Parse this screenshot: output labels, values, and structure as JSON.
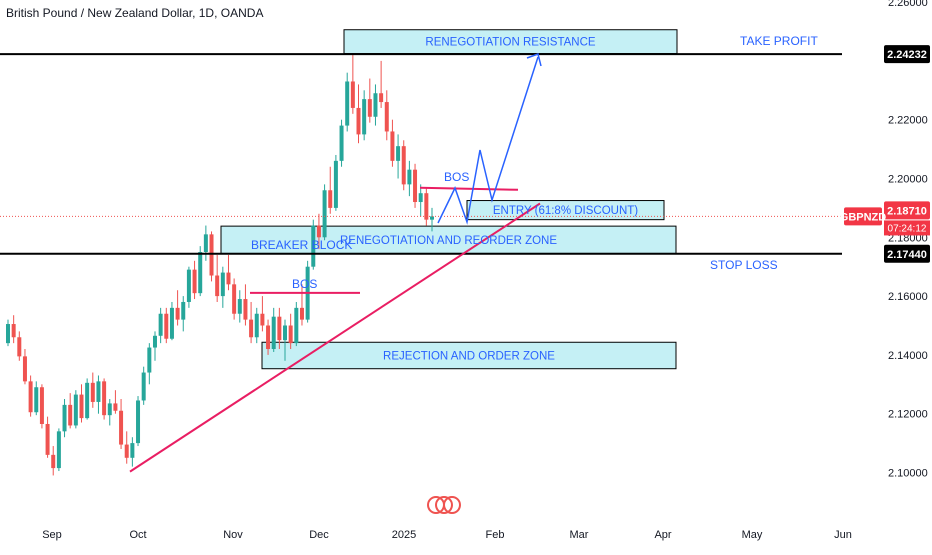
{
  "header": {
    "symbol_title": "British Pound / New Zealand Dollar, 1D, OANDA"
  },
  "chart_data": {
    "type": "candlestick",
    "title": "British Pound / New Zealand Dollar, 1D, OANDA",
    "ylim": [
      2.09,
      2.26
    ],
    "y_ticks": [
      "2.10000",
      "2.12000",
      "2.14000",
      "2.16000",
      "2.18000",
      "2.20000",
      "2.22000",
      "2.26000"
    ],
    "x_ticks": [
      "Sep",
      "Oct",
      "Nov",
      "Dec",
      "2025",
      "Feb",
      "Mar",
      "Apr",
      "May",
      "Jun"
    ],
    "symbol_badge": "GBPNZD",
    "last_price": "2.18710",
    "countdown": "07:24:12",
    "level_take_profit": "2.24232",
    "level_stop_loss": "2.17440",
    "bos_upper_price": 2.1965,
    "bos_lower_price": 2.1611,
    "trendline": {
      "from": {
        "price": 2.1003
      },
      "to": {
        "price": 2.1915
      }
    },
    "zones": [
      {
        "label": "RENEGOTIATION RESISTANCE",
        "y_top": 2.2506,
        "y_bottom": 2.2425
      },
      {
        "label": "ENTRY (61:8% DISCOUNT)",
        "y_top": 2.1925,
        "y_bottom": 2.186
      },
      {
        "label": "RENEGOTIATION AND REORDER ZONE",
        "y_top": 2.1838,
        "y_bottom": 2.1745
      },
      {
        "label": "REJECTION AND ORDER ZONE",
        "y_top": 2.1443,
        "y_bottom": 2.1353
      }
    ],
    "annotations": [
      "TAKE PROFIT",
      "STOP LOSS",
      "BREAKER BLOCK",
      "BOS",
      "BOS"
    ],
    "colors": {
      "up": "#26a69a",
      "down": "#ef5350",
      "zone_fill": "#b2ebf2",
      "trend": "#e91e63",
      "projection": "#2962ff",
      "label": "#2962ff"
    },
    "candles": [
      [
        2.144,
        2.152,
        2.143,
        2.1505
      ],
      [
        2.1505,
        2.1535,
        2.144,
        2.146
      ],
      [
        2.146,
        2.148,
        2.138,
        2.1395
      ],
      [
        2.1395,
        2.142,
        2.13,
        2.131
      ],
      [
        2.131,
        2.133,
        2.119,
        2.1205
      ],
      [
        2.1205,
        2.131,
        2.1195,
        2.129
      ],
      [
        2.129,
        2.13,
        2.115,
        2.1165
      ],
      [
        2.1165,
        2.119,
        2.105,
        2.106
      ],
      [
        2.106,
        2.109,
        2.099,
        2.1015
      ],
      [
        2.1015,
        2.115,
        2.1005,
        2.114
      ],
      [
        2.114,
        2.125,
        2.112,
        2.123
      ],
      [
        2.123,
        2.127,
        2.115,
        2.116
      ],
      [
        2.116,
        2.128,
        2.115,
        2.1265
      ],
      [
        2.1265,
        2.13,
        2.117,
        2.1185
      ],
      [
        2.1185,
        2.132,
        2.118,
        2.1305
      ],
      [
        2.1305,
        2.134,
        2.122,
        2.124
      ],
      [
        2.124,
        2.133,
        2.12,
        2.131
      ],
      [
        2.131,
        2.132,
        2.118,
        2.1195
      ],
      [
        2.1195,
        2.125,
        2.116,
        2.1235
      ],
      [
        2.1235,
        2.128,
        2.12,
        2.121
      ],
      [
        2.121,
        2.125,
        2.108,
        2.1095
      ],
      [
        2.1095,
        2.114,
        2.103,
        2.105
      ],
      [
        2.105,
        2.112,
        2.102,
        2.11
      ],
      [
        2.11,
        2.126,
        2.109,
        2.1245
      ],
      [
        2.1245,
        2.136,
        2.123,
        2.134
      ],
      [
        2.134,
        2.144,
        2.13,
        2.1425
      ],
      [
        2.1425,
        2.148,
        2.138,
        2.1465
      ],
      [
        2.1465,
        2.156,
        2.144,
        2.154
      ],
      [
        2.154,
        2.156,
        2.144,
        2.1455
      ],
      [
        2.1455,
        2.158,
        2.145,
        2.156
      ],
      [
        2.156,
        2.162,
        2.15,
        2.152
      ],
      [
        2.152,
        2.16,
        2.148,
        2.158
      ],
      [
        2.158,
        2.17,
        2.156,
        2.169
      ],
      [
        2.169,
        2.172,
        2.159,
        2.161
      ],
      [
        2.161,
        2.177,
        2.16,
        2.175
      ],
      [
        2.175,
        2.184,
        2.172,
        2.181
      ],
      [
        2.181,
        2.182,
        2.165,
        2.167
      ],
      [
        2.167,
        2.174,
        2.158,
        2.16
      ],
      [
        2.16,
        2.17,
        2.156,
        2.168
      ],
      [
        2.168,
        2.174,
        2.162,
        2.164
      ],
      [
        2.164,
        2.166,
        2.152,
        2.154
      ],
      [
        2.154,
        2.162,
        2.151,
        2.159
      ],
      [
        2.159,
        2.164,
        2.15,
        2.152
      ],
      [
        2.152,
        2.158,
        2.144,
        2.146
      ],
      [
        2.146,
        2.156,
        2.144,
        2.154
      ],
      [
        2.154,
        2.16,
        2.148,
        2.15
      ],
      [
        2.15,
        2.152,
        2.14,
        2.142
      ],
      [
        2.142,
        2.156,
        2.141,
        2.153
      ],
      [
        2.153,
        2.156,
        2.142,
        2.145
      ],
      [
        2.145,
        2.152,
        2.138,
        2.15
      ],
      [
        2.15,
        2.154,
        2.142,
        2.144
      ],
      [
        2.144,
        2.158,
        2.143,
        2.156
      ],
      [
        2.156,
        2.164,
        2.15,
        2.152
      ],
      [
        2.152,
        2.172,
        2.151,
        2.17
      ],
      [
        2.17,
        2.186,
        2.169,
        2.184
      ],
      [
        2.184,
        2.188,
        2.176,
        2.18
      ],
      [
        2.18,
        2.198,
        2.179,
        2.196
      ],
      [
        2.196,
        2.204,
        2.188,
        2.19
      ],
      [
        2.19,
        2.208,
        2.189,
        2.206
      ],
      [
        2.206,
        2.22,
        2.204,
        2.218
      ],
      [
        2.218,
        2.236,
        2.216,
        2.233
      ],
      [
        2.233,
        2.242,
        2.222,
        2.224
      ],
      [
        2.224,
        2.232,
        2.212,
        2.215
      ],
      [
        2.215,
        2.23,
        2.213,
        2.227
      ],
      [
        2.227,
        2.234,
        2.219,
        2.221
      ],
      [
        2.221,
        2.232,
        2.218,
        2.229
      ],
      [
        2.229,
        2.24,
        2.224,
        2.226
      ],
      [
        2.226,
        2.23,
        2.213,
        2.216
      ],
      [
        2.216,
        2.22,
        2.204,
        2.206
      ],
      [
        2.206,
        2.215,
        2.2,
        2.211
      ],
      [
        2.211,
        2.213,
        2.196,
        2.198
      ],
      [
        2.198,
        2.206,
        2.194,
        2.203
      ],
      [
        2.203,
        2.205,
        2.19,
        2.192
      ],
      [
        2.192,
        2.198,
        2.187,
        2.195
      ],
      [
        2.195,
        2.197,
        2.184,
        2.186
      ],
      [
        2.186,
        2.19,
        2.182,
        2.1871
      ]
    ]
  }
}
